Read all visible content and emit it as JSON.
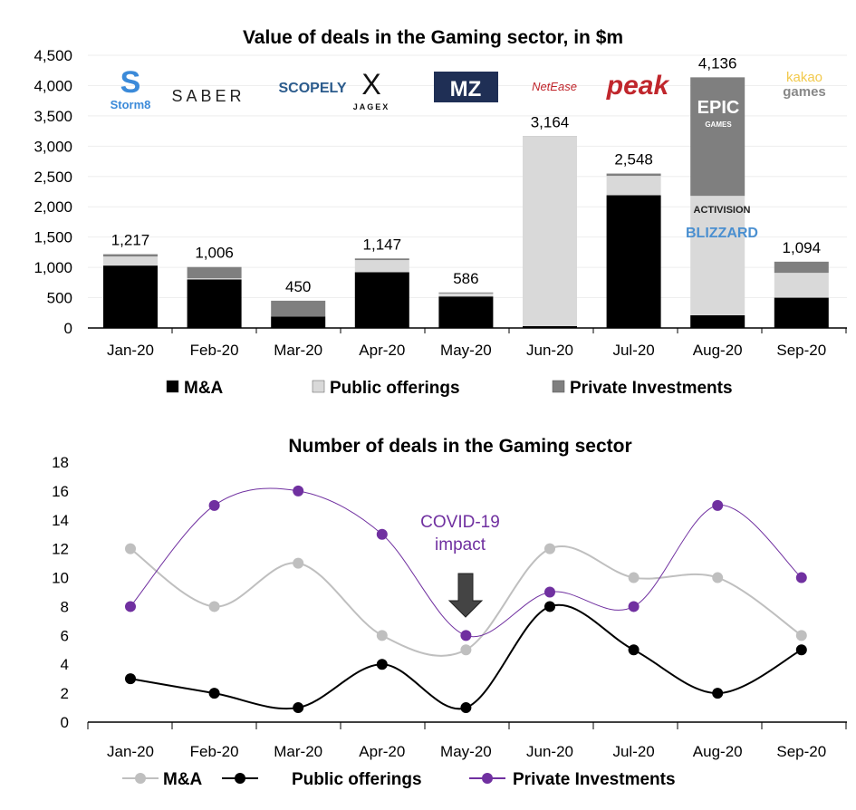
{
  "chart_data": [
    {
      "type": "bar",
      "stacked": true,
      "title": "Value of deals in the Gaming sector, in $m",
      "categories": [
        "Jan-20",
        "Feb-20",
        "Mar-20",
        "Apr-20",
        "May-20",
        "Jun-20",
        "Jul-20",
        "Aug-20",
        "Sep-20"
      ],
      "series": [
        {
          "name": "M&A",
          "color": "#000000",
          "values": [
            1030,
            800,
            190,
            920,
            520,
            30,
            2190,
            210,
            500
          ]
        },
        {
          "name": "Public offerings",
          "color": "#d9d9d9",
          "values": [
            150,
            20,
            0,
            200,
            50,
            3130,
            320,
            1970,
            410
          ]
        },
        {
          "name": "Private Investments",
          "color": "#7f7f7f",
          "values": [
            37,
            186,
            260,
            27,
            16,
            4,
            38,
            1956,
            184
          ]
        }
      ],
      "totals": [
        "1,217",
        "1,006",
        "450",
        "1,147",
        "586",
        "3,164",
        "2,548",
        "4,136",
        "1,094"
      ],
      "ylim": [
        0,
        4500
      ],
      "yticks": [
        "0",
        "500",
        "1,000",
        "1,500",
        "2,000",
        "2,500",
        "3,000",
        "3,500",
        "4,000",
        "4,500"
      ],
      "grid": true,
      "legend": "bottom",
      "logos": [
        "Storm8",
        "SABER",
        "SCOPELY",
        "JAGEX",
        "MZ",
        "NetEase",
        "peak",
        "EPIC GAMES",
        "ACTIVISION BLIZZARD",
        "kakao games"
      ]
    },
    {
      "type": "line",
      "title": "Number of deals in the Gaming sector",
      "categories": [
        "Jan-20",
        "Feb-20",
        "Mar-20",
        "Apr-20",
        "May-20",
        "Jun-20",
        "Jul-20",
        "Aug-20",
        "Sep-20"
      ],
      "series": [
        {
          "name": "M&A",
          "color": "#bfbfbf",
          "values": [
            12,
            8,
            11,
            6,
            5,
            12,
            10,
            10,
            6
          ]
        },
        {
          "name": "Public offerings",
          "color": "#000000",
          "values": [
            3,
            2,
            1,
            4,
            1,
            8,
            5,
            2,
            5
          ]
        },
        {
          "name": "Private Investments",
          "color": "#7030a0",
          "values": [
            8,
            15,
            16,
            13,
            6,
            9,
            8,
            15,
            10
          ]
        }
      ],
      "ylim": [
        0,
        18
      ],
      "yticks": [
        "0",
        "2",
        "4",
        "6",
        "8",
        "10",
        "12",
        "14",
        "16",
        "18"
      ],
      "annotation": [
        "COVID-19",
        "impact"
      ],
      "legend": "bottom"
    }
  ]
}
